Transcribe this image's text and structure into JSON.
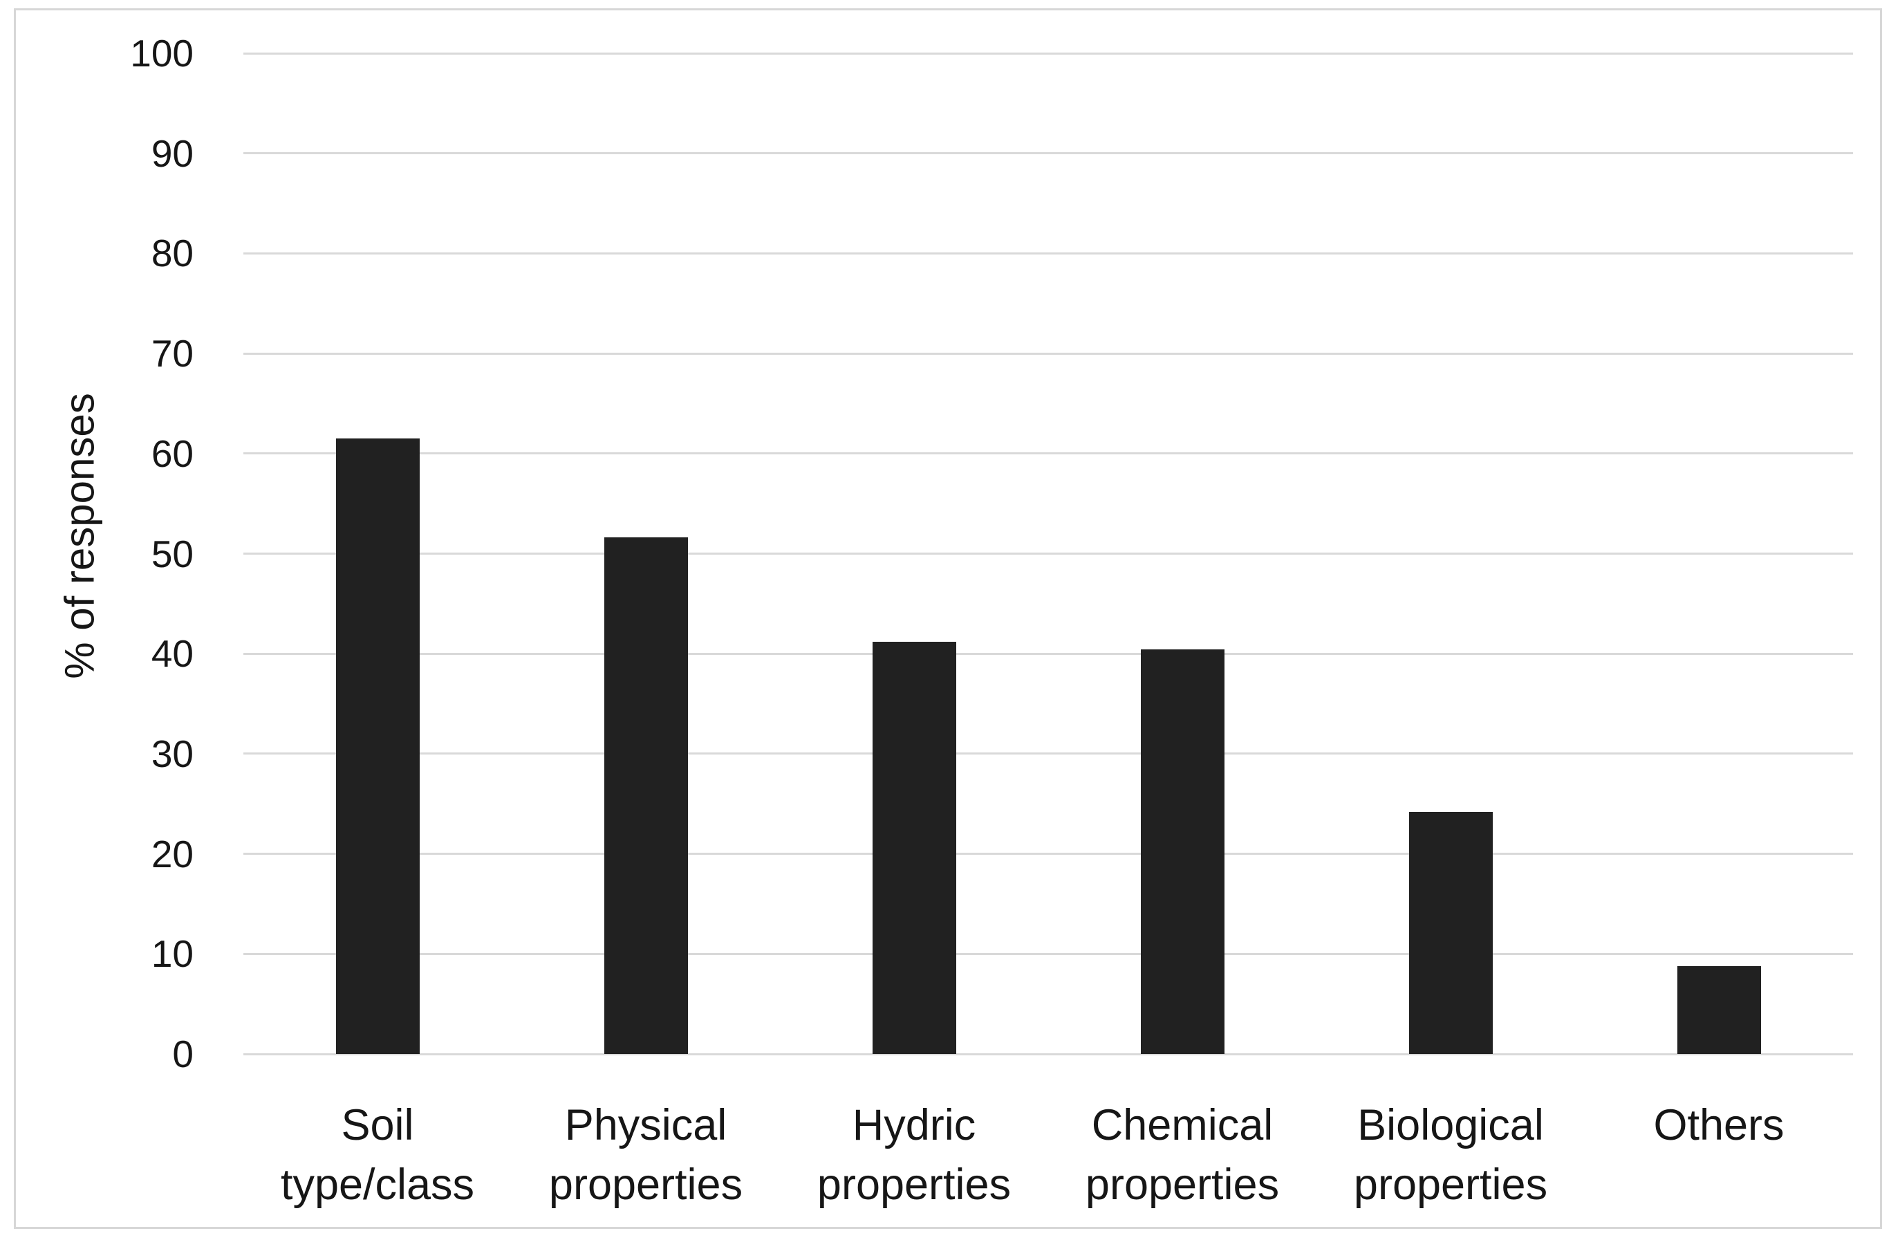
{
  "chart_data": {
    "type": "bar",
    "title": "",
    "xlabel": "",
    "ylabel": "% of responses",
    "ylim": [
      0,
      100
    ],
    "yticks": [
      0,
      10,
      20,
      30,
      40,
      50,
      60,
      70,
      80,
      90,
      100
    ],
    "grid": true,
    "legend": false,
    "categories": [
      "Soil\ntype/class",
      "Physical\nproperties",
      "Hydric\nproperties",
      "Chemical\nproperties",
      "Biological\nproperties",
      "Others"
    ],
    "values": [
      61.5,
      51.6,
      41.2,
      40.4,
      24.2,
      8.8
    ],
    "colors": {
      "bar": "#212121",
      "gridline": "#d9d9d9",
      "frame_border": "#d7d7d7",
      "text": "#161616",
      "background": "#ffffff"
    }
  }
}
